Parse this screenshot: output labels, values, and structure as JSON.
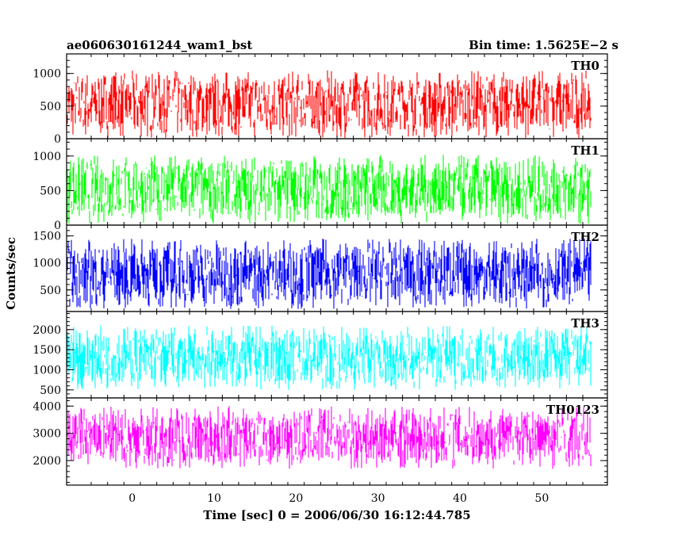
{
  "chart_data": {
    "type": "line",
    "title_left": "ae060630161244_wam1_bst",
    "title_right": "Bin time: 1.5625E−2 s",
    "xlabel": "Time [sec] 0 = 2006/06/30 16:12:44.785",
    "ylabel": "Counts/sec",
    "xlim": [
      -8,
      58
    ],
    "x_ticks": [
      "0",
      "10",
      "20",
      "30",
      "40",
      "50"
    ],
    "x_tick_values": [
      0,
      10,
      20,
      30,
      40,
      50
    ],
    "data_x_range": [
      -8,
      56
    ],
    "panels": [
      {
        "name": "TH0",
        "color": "#ff0000",
        "ylim": [
          0,
          1300
        ],
        "y_ticks": [
          "0",
          "500",
          "1000"
        ],
        "y_tick_values": [
          0,
          500,
          1000
        ],
        "center": 530,
        "spread": 520
      },
      {
        "name": "TH1",
        "color": "#00ff00",
        "ylim": [
          0,
          1250
        ],
        "y_ticks": [
          "0",
          "500",
          "1000"
        ],
        "y_tick_values": [
          0,
          500,
          1000
        ],
        "center": 520,
        "spread": 500
      },
      {
        "name": "TH2",
        "color": "#0000ff",
        "ylim": [
          100,
          1700
        ],
        "y_ticks": [
          "500",
          "1000",
          "1500"
        ],
        "y_tick_values": [
          500,
          1000,
          1500
        ],
        "center": 800,
        "spread": 650
      },
      {
        "name": "TH3",
        "color": "#00ffff",
        "ylim": [
          300,
          2450
        ],
        "y_ticks": [
          "500",
          "1000",
          "1500",
          "2000"
        ],
        "y_tick_values": [
          500,
          1000,
          1500,
          2000
        ],
        "center": 1300,
        "spread": 800
      },
      {
        "name": "TH0123",
        "color": "#ff00ff",
        "ylim": [
          1100,
          4300
        ],
        "y_ticks": [
          "2000",
          "3000",
          "4000"
        ],
        "y_tick_values": [
          2000,
          3000,
          4000
        ],
        "center": 2850,
        "spread": 1150
      }
    ]
  }
}
